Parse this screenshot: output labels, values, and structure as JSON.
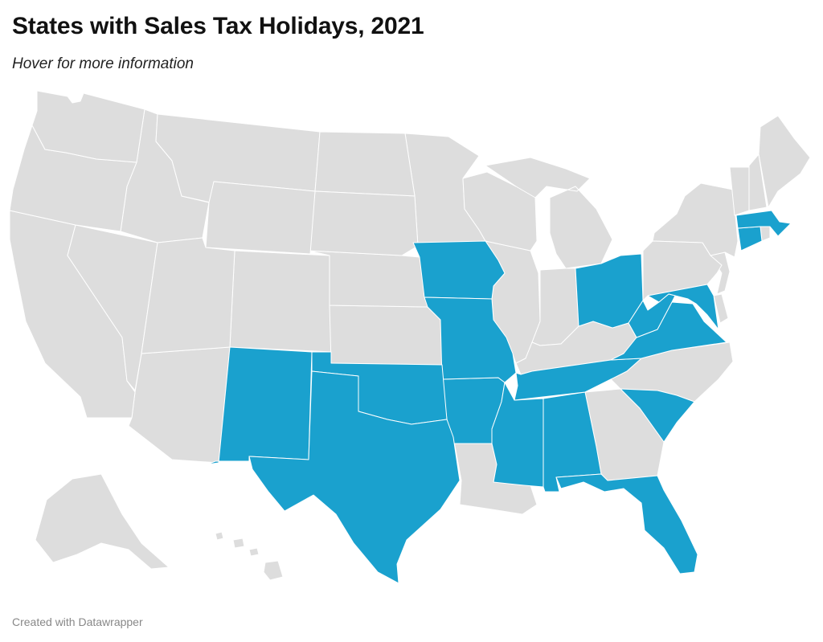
{
  "header": {
    "title": "States with Sales Tax Holidays, 2021",
    "subtitle": "Hover for more information"
  },
  "footer": {
    "credit": "Created with Datawrapper"
  },
  "colors": {
    "holiday": "#1aa1ce",
    "no_holiday": "#dddddd",
    "border": "#ffffff"
  },
  "map_data": {
    "type": "choropleth",
    "region": "United States",
    "legend": "none",
    "holiday_states": [
      "Alabama",
      "Arkansas",
      "Connecticut",
      "Florida",
      "Iowa",
      "Maryland",
      "Massachusetts",
      "Mississippi",
      "Missouri",
      "New Mexico",
      "Ohio",
      "Oklahoma",
      "South Carolina",
      "Tennessee",
      "Texas",
      "Virginia",
      "West Virginia"
    ],
    "other_states": [
      "Alaska",
      "Arizona",
      "California",
      "Colorado",
      "Delaware",
      "Georgia",
      "Hawaii",
      "Idaho",
      "Illinois",
      "Indiana",
      "Kansas",
      "Kentucky",
      "Louisiana",
      "Maine",
      "Michigan",
      "Minnesota",
      "Montana",
      "Nebraska",
      "Nevada",
      "New Hampshire",
      "New Jersey",
      "New York",
      "North Carolina",
      "North Dakota",
      "Oregon",
      "Pennsylvania",
      "Rhode Island",
      "South Dakota",
      "Utah",
      "Vermont",
      "Washington",
      "Wisconsin",
      "Wyoming"
    ]
  }
}
